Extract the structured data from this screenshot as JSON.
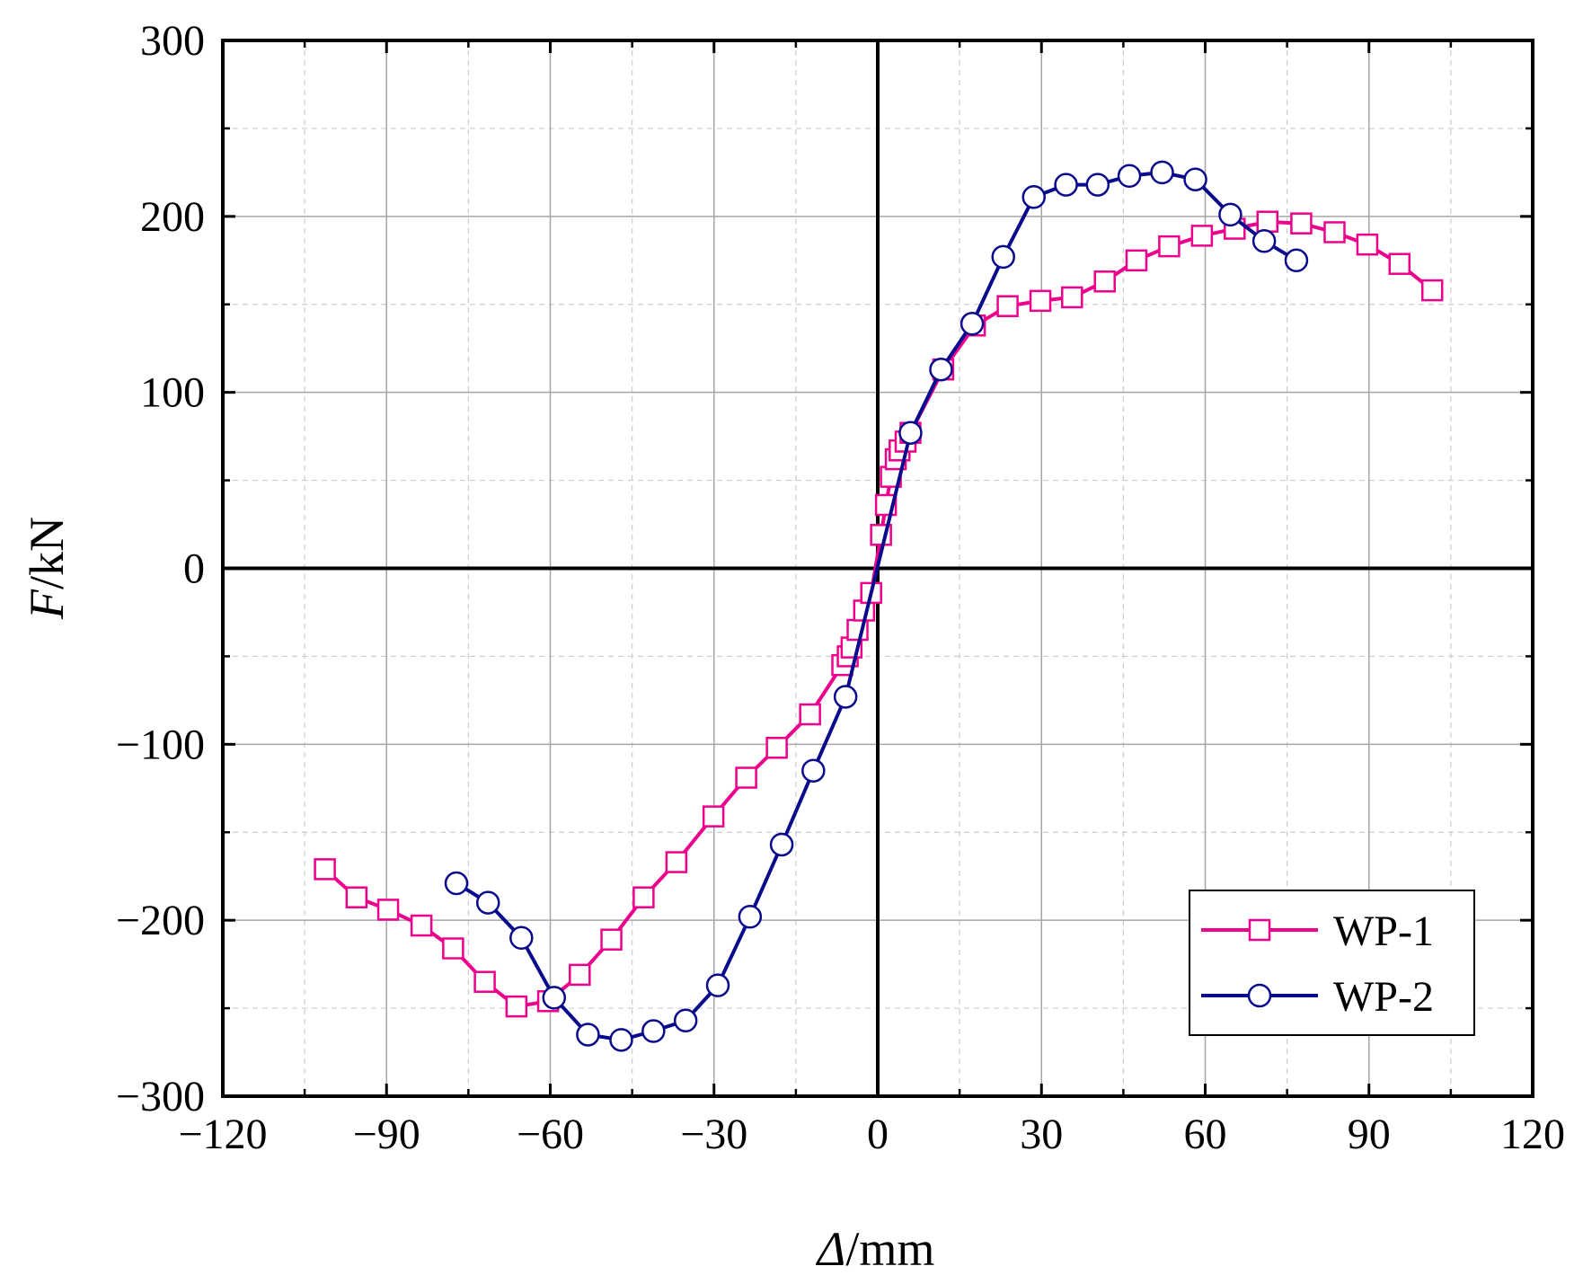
{
  "chart_data": {
    "type": "line",
    "title": "",
    "xlabel": "Δ/mm",
    "ylabel": "F/kN",
    "xlabel_var": "Δ",
    "xlabel_unit": "/mm",
    "ylabel_var": "F",
    "ylabel_unit": "/kN",
    "xlim": [
      -120,
      120
    ],
    "ylim": [
      -300,
      300
    ],
    "x_ticks": [
      -120,
      -90,
      -60,
      -30,
      0,
      30,
      60,
      90,
      120
    ],
    "x_tick_labels": [
      "−120",
      "−90",
      "−60",
      "−30",
      "0",
      "30",
      "60",
      "90",
      "120"
    ],
    "y_ticks": [
      -300,
      -200,
      -100,
      0,
      100,
      200,
      300
    ],
    "y_tick_labels": [
      "−300",
      "−200",
      "−100",
      "0",
      "100",
      "200",
      "300"
    ],
    "grid": true,
    "legend_position": "bottom-right",
    "series": [
      {
        "name": "WP-1",
        "color": "#ec008c",
        "marker": "square",
        "x": [
          -101.3,
          -95.5,
          -89.7,
          -83.6,
          -77.8,
          -72.0,
          -66.2,
          -60.4,
          -54.6,
          -48.8,
          -42.9,
          -36.9,
          -30.1,
          -24.1,
          -18.5,
          -12.4,
          -6.5,
          -5.5,
          -4.8,
          -3.7,
          -2.5,
          -1.2,
          0.6,
          1.5,
          2.4,
          3.3,
          4.0,
          5.1,
          6.0,
          12.0,
          17.8,
          23.8,
          29.8,
          35.6,
          41.6,
          47.4,
          53.4,
          59.4,
          65.4,
          71.4,
          77.6,
          83.7,
          89.7,
          95.6,
          101.6
        ],
        "y": [
          -171,
          -187,
          -194,
          -203,
          -216,
          -235,
          -249,
          -246,
          -231,
          -211,
          -187,
          -167,
          -141,
          -119,
          -102,
          -83,
          -55,
          -50,
          -45,
          -35,
          -24,
          -14,
          19,
          36,
          52,
          62,
          67,
          72,
          77,
          113,
          138,
          149,
          152,
          154,
          163,
          175,
          183,
          189,
          193,
          197,
          196,
          191,
          184,
          173,
          158
        ]
      },
      {
        "name": "WP-2",
        "color": "#0a0a8c",
        "marker": "circle",
        "x": [
          -77.2,
          -71.4,
          -65.3,
          -59.3,
          -53.1,
          -47.0,
          -41.1,
          -35.2,
          -29.3,
          -23.4,
          -17.6,
          -11.8,
          -5.9,
          6.0,
          11.6,
          17.3,
          23.0,
          28.6,
          34.5,
          40.3,
          46.1,
          52.1,
          58.2,
          64.6,
          70.8,
          76.7
        ],
        "y": [
          -179,
          -190,
          -210,
          -244,
          -265,
          -268,
          -263,
          -257,
          -237,
          -198,
          -157,
          -115,
          -73,
          77,
          113,
          139,
          177,
          211,
          218,
          218,
          223,
          225,
          221,
          201,
          186,
          175
        ]
      }
    ]
  }
}
